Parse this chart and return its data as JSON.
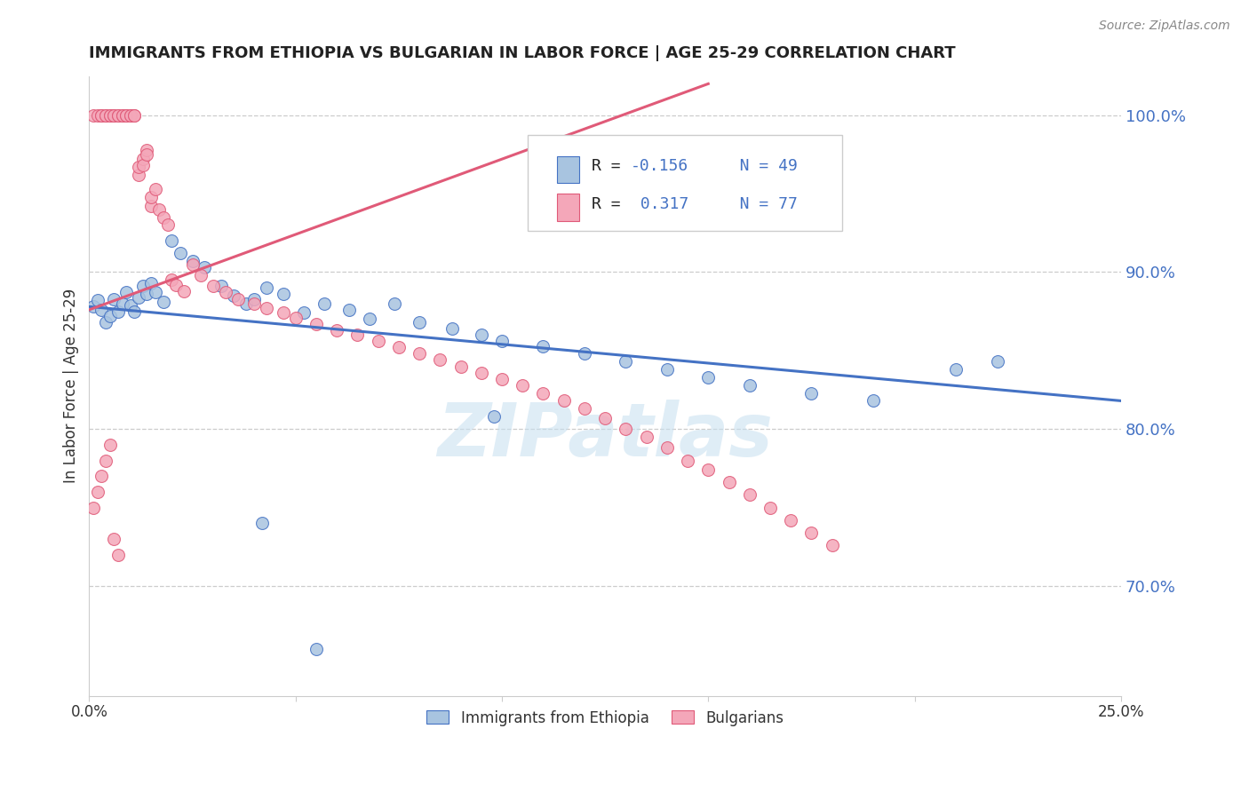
{
  "title": "IMMIGRANTS FROM ETHIOPIA VS BULGARIAN IN LABOR FORCE | AGE 25-29 CORRELATION CHART",
  "source": "Source: ZipAtlas.com",
  "ylabel": "In Labor Force | Age 25-29",
  "xmin": 0.0,
  "xmax": 0.25,
  "ymin": 0.63,
  "ymax": 1.025,
  "ytick_vals": [
    0.7,
    0.8,
    0.9,
    1.0
  ],
  "ytick_labels": [
    "70.0%",
    "80.0%",
    "90.0%",
    "100.0%"
  ],
  "color_ethiopia": "#a8c4e0",
  "color_bulgarian": "#f4a7b9",
  "line_ethiopia": "#4472c4",
  "line_bulgarian": "#e05a78",
  "watermark": "ZIPatlas",
  "legend_r1": "R = ",
  "legend_v1": "-0.156",
  "legend_n1": "N = 49",
  "legend_r2": "R =  ",
  "legend_v2": "0.317",
  "legend_n2": "N = 77",
  "legend_label1": "Immigrants from Ethiopia",
  "legend_label2": "Bulgarians",
  "ethiopia_x": [
    0.001,
    0.002,
    0.003,
    0.004,
    0.005,
    0.006,
    0.007,
    0.008,
    0.009,
    0.01,
    0.011,
    0.012,
    0.013,
    0.014,
    0.015,
    0.016,
    0.018,
    0.02,
    0.022,
    0.025,
    0.028,
    0.032,
    0.035,
    0.038,
    0.04,
    0.043,
    0.047,
    0.052,
    0.057,
    0.063,
    0.068,
    0.074,
    0.08,
    0.088,
    0.095,
    0.1,
    0.11,
    0.12,
    0.13,
    0.14,
    0.15,
    0.16,
    0.175,
    0.19,
    0.21,
    0.22,
    0.098,
    0.055,
    0.042
  ],
  "ethiopia_y": [
    0.878,
    0.882,
    0.876,
    0.868,
    0.872,
    0.883,
    0.875,
    0.88,
    0.887,
    0.879,
    0.875,
    0.884,
    0.891,
    0.886,
    0.893,
    0.887,
    0.881,
    0.92,
    0.912,
    0.907,
    0.903,
    0.891,
    0.885,
    0.88,
    0.883,
    0.89,
    0.886,
    0.874,
    0.88,
    0.876,
    0.87,
    0.88,
    0.868,
    0.864,
    0.86,
    0.856,
    0.853,
    0.848,
    0.843,
    0.838,
    0.833,
    0.828,
    0.823,
    0.818,
    0.838,
    0.843,
    0.808,
    0.66,
    0.74
  ],
  "bulgarian_x": [
    0.001,
    0.002,
    0.003,
    0.003,
    0.004,
    0.004,
    0.005,
    0.005,
    0.006,
    0.006,
    0.007,
    0.007,
    0.008,
    0.008,
    0.009,
    0.009,
    0.01,
    0.01,
    0.011,
    0.011,
    0.012,
    0.012,
    0.013,
    0.013,
    0.014,
    0.014,
    0.015,
    0.015,
    0.016,
    0.017,
    0.018,
    0.019,
    0.02,
    0.021,
    0.023,
    0.025,
    0.027,
    0.03,
    0.033,
    0.036,
    0.04,
    0.043,
    0.047,
    0.05,
    0.055,
    0.06,
    0.065,
    0.07,
    0.075,
    0.08,
    0.085,
    0.09,
    0.095,
    0.1,
    0.105,
    0.11,
    0.115,
    0.12,
    0.125,
    0.13,
    0.135,
    0.14,
    0.145,
    0.15,
    0.155,
    0.16,
    0.165,
    0.17,
    0.175,
    0.18,
    0.001,
    0.002,
    0.003,
    0.004,
    0.005,
    0.006,
    0.007
  ],
  "bulgarian_y": [
    1.0,
    1.0,
    1.0,
    1.0,
    1.0,
    1.0,
    1.0,
    1.0,
    1.0,
    1.0,
    1.0,
    1.0,
    1.0,
    1.0,
    1.0,
    1.0,
    1.0,
    1.0,
    1.0,
    1.0,
    0.962,
    0.967,
    0.972,
    0.968,
    0.978,
    0.975,
    0.942,
    0.948,
    0.953,
    0.94,
    0.935,
    0.93,
    0.895,
    0.892,
    0.888,
    0.905,
    0.898,
    0.891,
    0.887,
    0.883,
    0.88,
    0.877,
    0.874,
    0.871,
    0.867,
    0.863,
    0.86,
    0.856,
    0.852,
    0.848,
    0.844,
    0.84,
    0.836,
    0.832,
    0.828,
    0.823,
    0.818,
    0.813,
    0.807,
    0.8,
    0.795,
    0.788,
    0.78,
    0.774,
    0.766,
    0.758,
    0.75,
    0.742,
    0.734,
    0.726,
    0.75,
    0.76,
    0.77,
    0.78,
    0.79,
    0.73,
    0.72
  ]
}
